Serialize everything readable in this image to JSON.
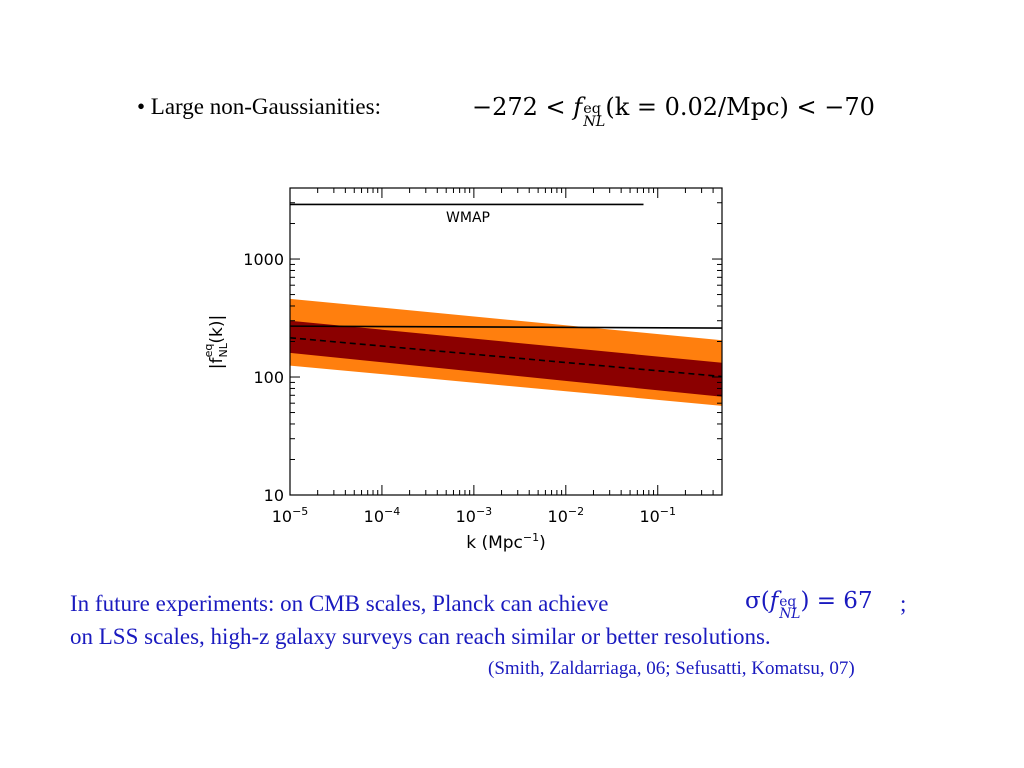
{
  "slide": {
    "bullet": "• Large non-Gaussianities:",
    "equation": {
      "lhs": "−272 <",
      "f": "f",
      "sup": "eq",
      "sub": "NL",
      "arg": "(k = 0.02/Mpc) < −70"
    },
    "note_line1": "In future experiments: on CMB scales, Planck can achieve",
    "note_eq": {
      "sigma": "σ(",
      "f": "f",
      "sup": "eq",
      "sub": "NL",
      "rhs": ") = 67"
    },
    "note_semicolon": ";",
    "note_line2": "on LSS scales, high-z galaxy surveys can reach similar or better resolutions.",
    "citation": "(Smith, Zaldarriaga, 06; Sefusatti, Komatsu, 07)"
  },
  "chart_data": {
    "type": "area",
    "x_scale": "log",
    "y_scale": "log",
    "xlim": [
      1e-05,
      0.5
    ],
    "ylim": [
      10,
      4000
    ],
    "x_ticks": [
      1e-05,
      0.0001,
      0.001,
      0.01,
      0.1
    ],
    "x_tick_labels": [
      {
        "base": "10",
        "exp": "−5"
      },
      {
        "base": "10",
        "exp": "−4"
      },
      {
        "base": "10",
        "exp": "−3"
      },
      {
        "base": "10",
        "exp": "−2"
      },
      {
        "base": "10",
        "exp": "−1"
      }
    ],
    "y_ticks": [
      10,
      100,
      1000
    ],
    "y_tick_labels": [
      "10",
      "100",
      "1000"
    ],
    "xlabel": "k (Mpc",
    "xlabel_exp": "−1",
    "xlabel_tail": ")",
    "ylabel_parts": {
      "pre": "|f",
      "sub": "NL",
      "sup": "eq",
      "post": "(k)|"
    },
    "bands": [
      {
        "color": "#ff7f0e",
        "x": [
          1e-05,
          0.5
        ],
        "lower": [
          125,
          57
        ],
        "upper": [
          460,
          205
        ]
      },
      {
        "color": "#8b0000",
        "x": [
          1e-05,
          0.5
        ],
        "lower": [
          160,
          68
        ],
        "upper": [
          300,
          132
        ]
      }
    ],
    "lines": [
      {
        "style": "dashed",
        "color": "#000000",
        "x": [
          1e-05,
          0.5
        ],
        "y": [
          215,
          101
        ]
      },
      {
        "style": "solid",
        "color": "#000000",
        "x": [
          1e-05,
          0.5
        ],
        "y": [
          270,
          260
        ]
      },
      {
        "style": "solid",
        "color": "#000000",
        "x": [
          1e-05,
          0.07
        ],
        "y": [
          2900,
          2900
        ],
        "label": "WMAP"
      }
    ]
  }
}
